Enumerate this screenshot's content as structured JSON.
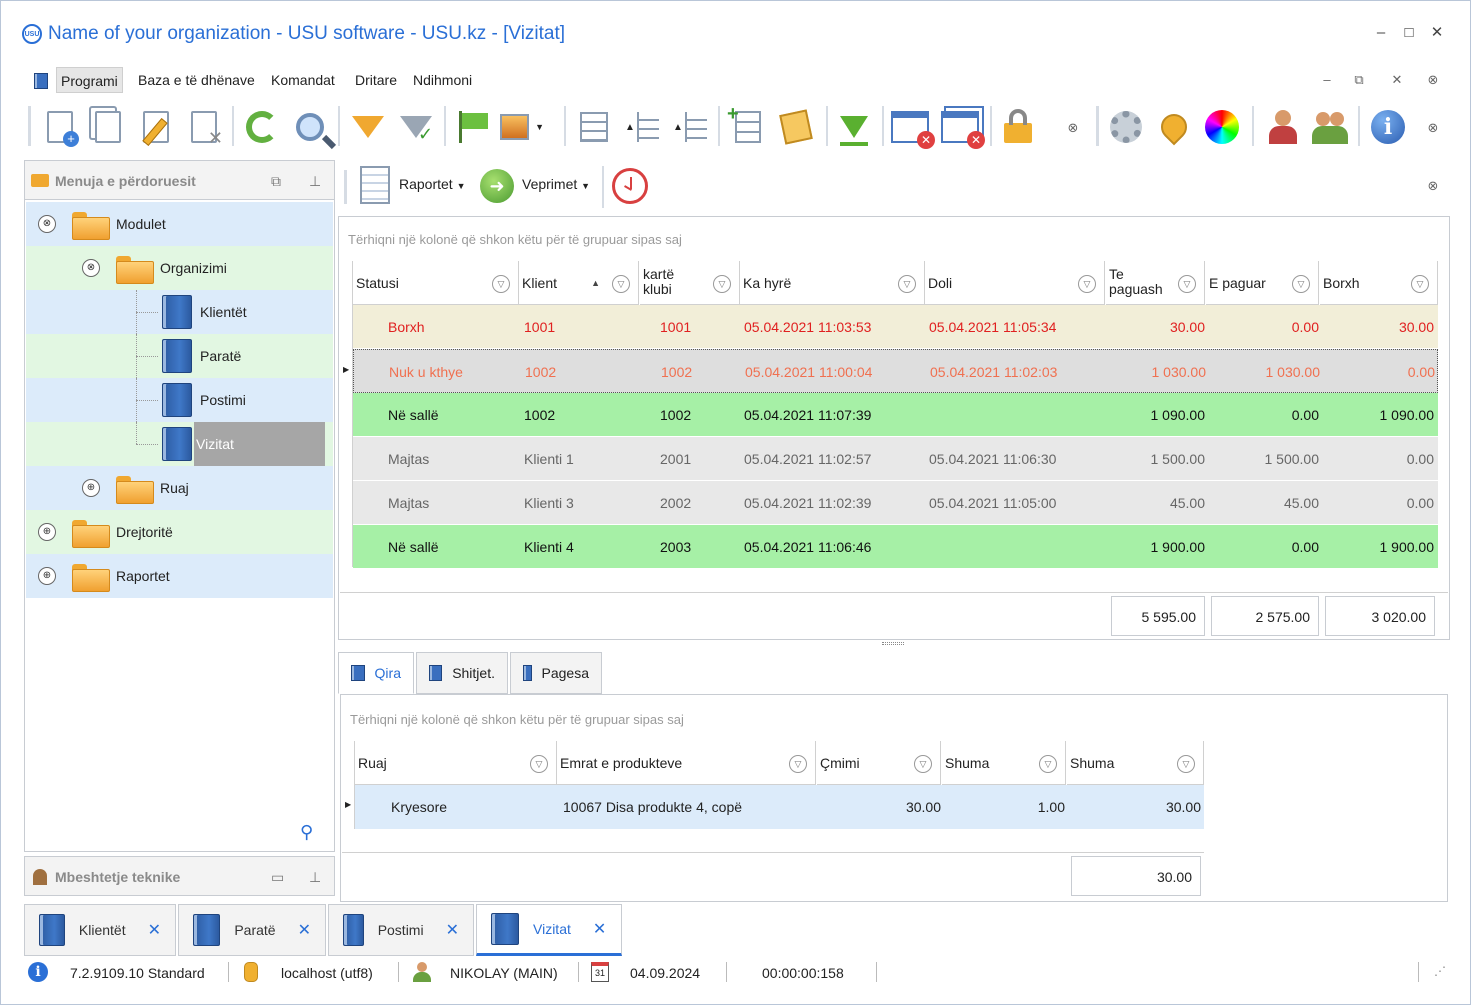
{
  "window": {
    "title": "Name of your organization - USU software - USU.kz - [Vizitat]",
    "logo": "USU",
    "controls": [
      "–",
      "□",
      "✕"
    ]
  },
  "menu": [
    "Programi",
    "Baza e të dhënave",
    "Komandat",
    "Dritare",
    "Ndihmoni"
  ],
  "menu_controls": [
    "–",
    "⧉",
    "✕",
    "⊗"
  ],
  "toolbar_icons": [
    "add-document-icon",
    "copy-document-icon",
    "edit-document-icon",
    "delete-document-icon",
    "refresh-icon",
    "search-icon",
    "filter-icon",
    "filter-check-icon",
    "flag-icon",
    "image-icon",
    "tree-expand-icon",
    "tree-up-icon",
    "tree-down-icon",
    "add-row-icon",
    "notes-icon",
    "download-icon",
    "close-window-icon",
    "close-all-icon",
    "lock-icon",
    "settings-icon",
    "location-icon",
    "color-wheel-icon",
    "user-key-icon",
    "users-icon",
    "info-icon"
  ],
  "left_panel": {
    "header": "Menuja e përdoruesit",
    "tree": [
      {
        "label": "Modulet",
        "level": 0,
        "type": "folder",
        "expand": "⊗"
      },
      {
        "label": "Organizimi",
        "level": 1,
        "type": "folder",
        "expand": "⊗"
      },
      {
        "label": "Klientët",
        "level": 2,
        "type": "book"
      },
      {
        "label": "Paratë",
        "level": 2,
        "type": "book"
      },
      {
        "label": "Postimi",
        "level": 2,
        "type": "book"
      },
      {
        "label": "Vizitat",
        "level": 2,
        "type": "book",
        "selected": true
      },
      {
        "label": "Ruaj",
        "level": 1,
        "type": "folder",
        "expand": "⊕"
      },
      {
        "label": "Drejtoritë",
        "level": 0,
        "type": "folder",
        "expand": "⊕"
      },
      {
        "label": "Raportet",
        "level": 0,
        "type": "folder",
        "expand": "⊕"
      }
    ],
    "bottom_header": "Mbeshtetje teknike"
  },
  "actions": {
    "reports": "Raportet",
    "operations": "Veprimet"
  },
  "main_grid": {
    "group_hint": "Tërhiqni një kolonë që shkon këtu për të grupuar sipas saj",
    "columns": [
      "Statusi",
      "Klient",
      "kartë klubi",
      "Ka hyrë",
      "Doli",
      "Te paguash",
      "E paguar",
      "Borxh"
    ],
    "rows": [
      {
        "status": "Borxh",
        "client": "1001",
        "card": "1001",
        "in": "05.04.2021 11:03:53",
        "out": "05.04.2021 11:05:34",
        "to_pay": "30.00",
        "paid": "0.00",
        "debt": "30.00",
        "style": "debt"
      },
      {
        "status": "Nuk u kthye",
        "client": "1002",
        "card": "1002",
        "in": "05.04.2021 11:00:04",
        "out": "05.04.2021 11:02:03",
        "to_pay": "1 030.00",
        "paid": "1 030.00",
        "debt": "0.00",
        "style": "notreturned"
      },
      {
        "status": "Në sallë",
        "client": "1002",
        "card": "1002",
        "in": "05.04.2021 11:07:39",
        "out": "",
        "to_pay": "1 090.00",
        "paid": "0.00",
        "debt": "1 090.00",
        "style": "inhall"
      },
      {
        "status": "Majtas",
        "client": "Klienti 1",
        "card": "2001",
        "in": "05.04.2021 11:02:57",
        "out": "05.04.2021 11:06:30",
        "to_pay": "1 500.00",
        "paid": "1 500.00",
        "debt": "0.00",
        "style": "left"
      },
      {
        "status": "Majtas",
        "client": "Klienti 3",
        "card": "2002",
        "in": "05.04.2021 11:02:39",
        "out": "05.04.2021 11:05:00",
        "to_pay": "45.00",
        "paid": "45.00",
        "debt": "0.00",
        "style": "left"
      },
      {
        "status": "Në sallë",
        "client": "Klienti 4",
        "card": "2003",
        "in": "05.04.2021 11:06:46",
        "out": "",
        "to_pay": "1 900.00",
        "paid": "0.00",
        "debt": "1 900.00",
        "style": "inhall"
      }
    ],
    "totals": [
      "5 595.00",
      "2 575.00",
      "3 020.00"
    ]
  },
  "detail_tabs": [
    "Qira",
    "Shitjet.",
    "Pagesa"
  ],
  "detail_grid": {
    "group_hint": "Tërhiqni një kolonë që shkon këtu për të grupuar sipas saj",
    "columns": [
      "Ruaj",
      "Emrat e produkteve",
      "Çmimi",
      "Shuma",
      "Shuma"
    ],
    "rows": [
      {
        "store": "Kryesore",
        "product": "10067 Disa produkte 4, copë",
        "price": "30.00",
        "qty": "1.00",
        "sum": "30.00"
      }
    ],
    "total": "30.00"
  },
  "doc_tabs": [
    "Klientët",
    "Paratë",
    "Postimi",
    "Vizitat"
  ],
  "status_bar": {
    "version": "7.2.9109.10 Standard",
    "db": "localhost (utf8)",
    "user": "NIKOLAY (MAIN)",
    "calendar_day": "31",
    "date": "04.09.2024",
    "timer": "00:00:00:158"
  },
  "colors": {
    "accent": "#2a6fd6",
    "debt_row": "#f2eed8",
    "inhall_row": "#a6f0a6",
    "left_row": "#e8e8e8",
    "red_text": "#e02020",
    "tree_blue": "#dcebfa",
    "tree_green": "#e2f7e2"
  }
}
